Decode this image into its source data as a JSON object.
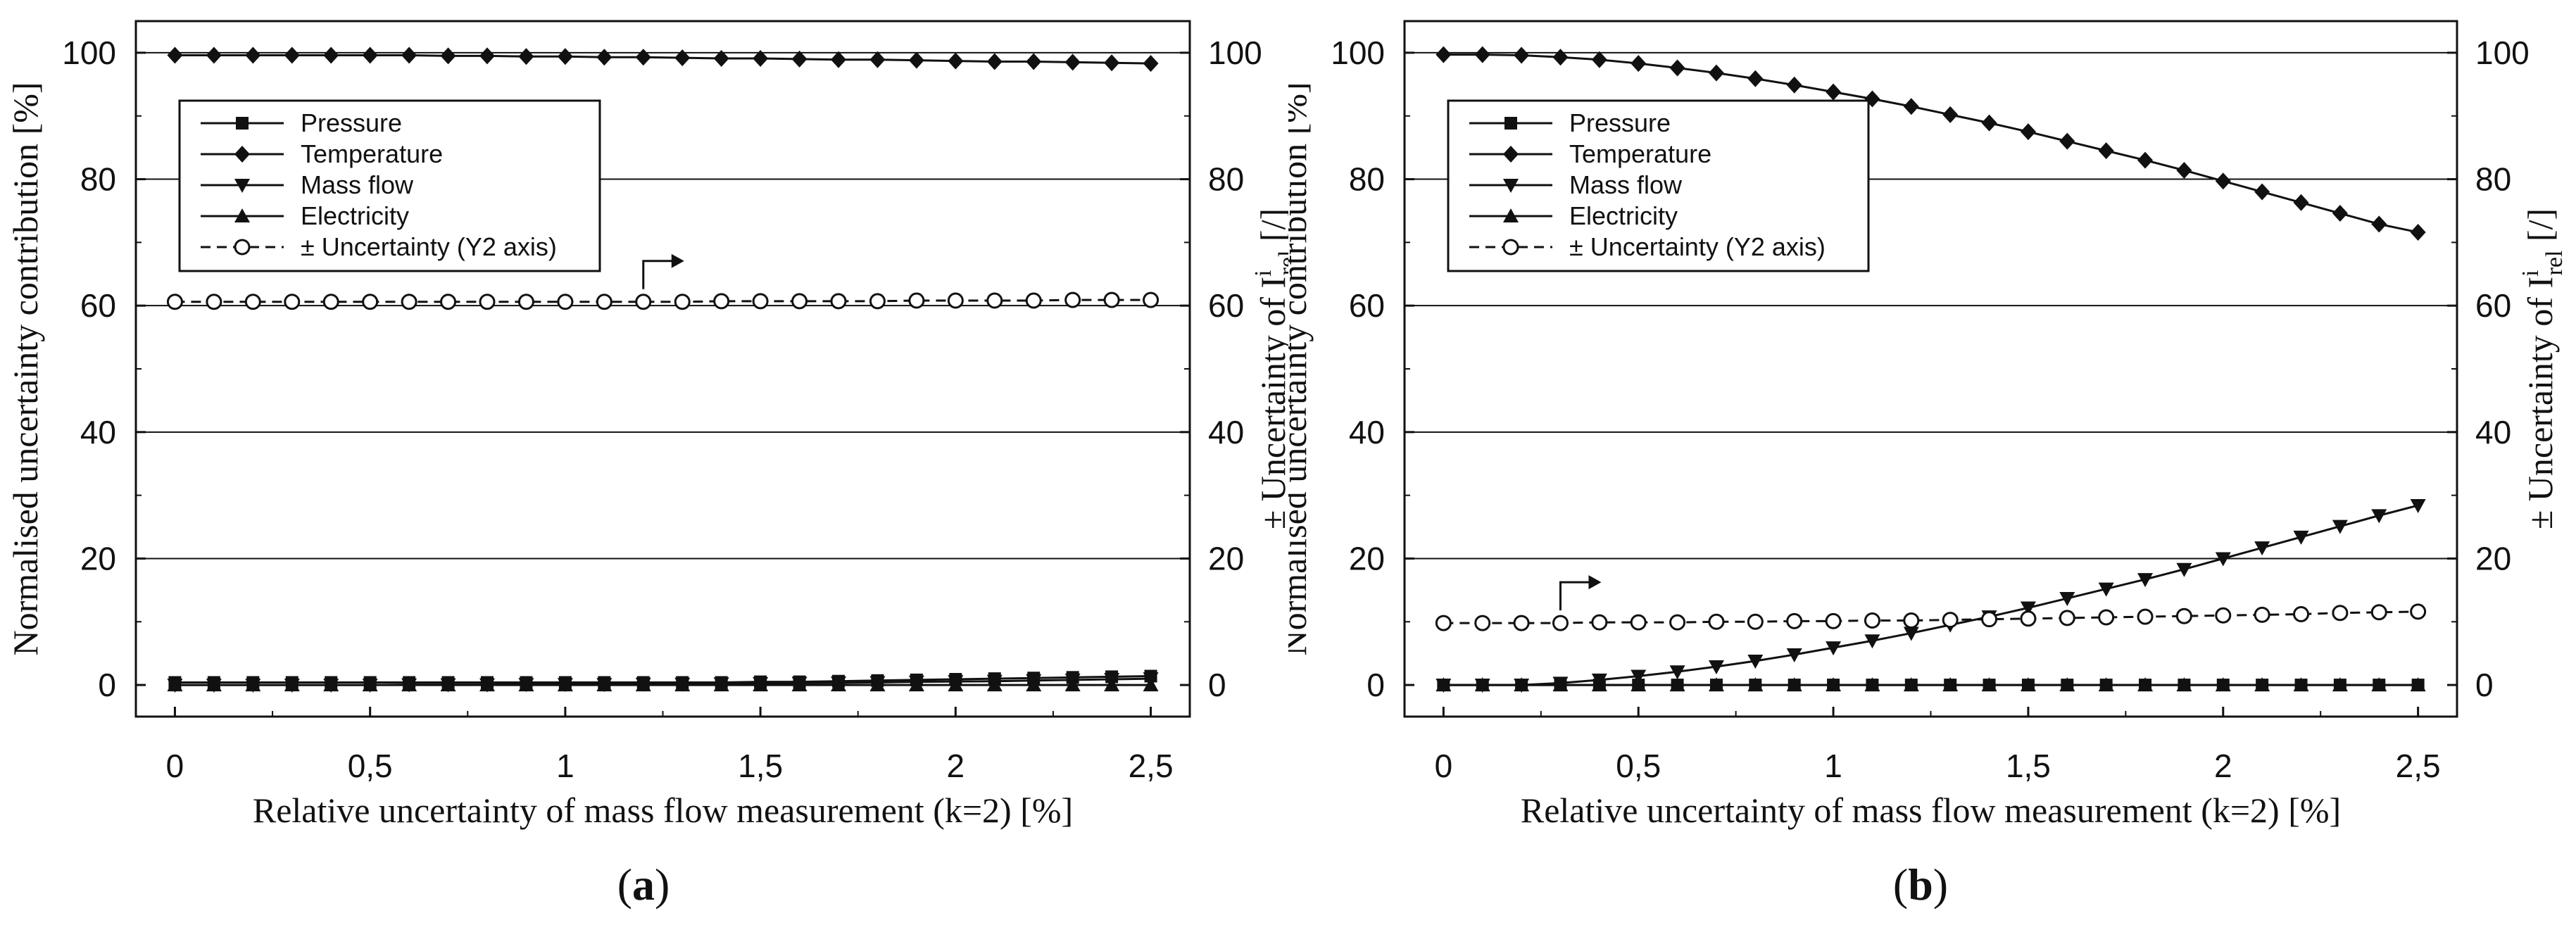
{
  "chart_data": [
    {
      "type": "line",
      "panel": "a",
      "xlabel": "Relative uncertainty of mass flow measurement (k=2) [%]",
      "ylabel": "Normalised uncertainty contribution [%]",
      "y2label_prefix": "± Uncertainty of I",
      "y2label_sup": "i",
      "y2label_sub": "rel",
      "y2label_suffix": " [/]",
      "xlim": [
        -0.1,
        2.6
      ],
      "ylim": [
        -5,
        105
      ],
      "y2lim": [
        -5,
        105
      ],
      "xticks": [
        "0",
        "0,5",
        "1",
        "1,5",
        "2",
        "2,5"
      ],
      "yticks": [
        "0",
        "20",
        "40",
        "60",
        "80",
        "100"
      ],
      "y2ticks": [
        "0",
        "20",
        "40",
        "60",
        "80",
        "100"
      ],
      "x": [
        0,
        0.1,
        0.2,
        0.3,
        0.4,
        0.5,
        0.6,
        0.7,
        0.8,
        0.9,
        1.0,
        1.1,
        1.2,
        1.3,
        1.4,
        1.5,
        1.6,
        1.7,
        1.8,
        1.9,
        2.0,
        2.1,
        2.2,
        2.3,
        2.4,
        2.5
      ],
      "series": [
        {
          "name": "Pressure",
          "marker": "square",
          "axis": "y1",
          "dashed": false,
          "values": [
            0.4,
            0.4,
            0.4,
            0.4,
            0.4,
            0.4,
            0.4,
            0.4,
            0.4,
            0.4,
            0.4,
            0.4,
            0.4,
            0.4,
            0.4,
            0.5,
            0.5,
            0.6,
            0.7,
            0.8,
            0.9,
            1.0,
            1.1,
            1.2,
            1.3,
            1.4
          ]
        },
        {
          "name": "Temperature",
          "marker": "diamond",
          "axis": "y1",
          "dashed": false,
          "values": [
            99.6,
            99.6,
            99.6,
            99.6,
            99.6,
            99.6,
            99.6,
            99.5,
            99.5,
            99.4,
            99.4,
            99.3,
            99.3,
            99.2,
            99.1,
            99.1,
            99.0,
            98.9,
            98.9,
            98.8,
            98.7,
            98.6,
            98.6,
            98.5,
            98.4,
            98.3
          ]
        },
        {
          "name": "Mass flow",
          "marker": "triangle-down",
          "axis": "y1",
          "dashed": false,
          "values": [
            0,
            0,
            0,
            0,
            0,
            0,
            0.05,
            0.05,
            0.05,
            0.1,
            0.1,
            0.1,
            0.15,
            0.15,
            0.2,
            0.25,
            0.3,
            0.35,
            0.4,
            0.5,
            0.55,
            0.6,
            0.7,
            0.8,
            0.9,
            1.0
          ]
        },
        {
          "name": "Electricity",
          "marker": "triangle-up",
          "axis": "y1",
          "dashed": false,
          "values": [
            0,
            0,
            0,
            0,
            0,
            0,
            0,
            0,
            0,
            0,
            0,
            0,
            0,
            0,
            0,
            0,
            0,
            0,
            0,
            0,
            0,
            0,
            0,
            0,
            0,
            0
          ]
        },
        {
          "name": "± Uncertainty (Y2 axis)",
          "marker": "circle-open",
          "axis": "y2",
          "dashed": true,
          "values": [
            60.6,
            60.6,
            60.6,
            60.6,
            60.6,
            60.6,
            60.6,
            60.6,
            60.6,
            60.6,
            60.6,
            60.6,
            60.6,
            60.6,
            60.7,
            60.7,
            60.7,
            60.7,
            60.7,
            60.8,
            60.8,
            60.8,
            60.8,
            60.9,
            60.9,
            60.9
          ]
        }
      ]
    },
    {
      "type": "line",
      "panel": "b",
      "xlabel": "Relative uncertainty of mass flow measurement (k=2) [%]",
      "ylabel": "Normalised uncertainty contribution [%]",
      "y2label_prefix": "± Uncertainty of I",
      "y2label_sup": "i",
      "y2label_sub": "rel",
      "y2label_suffix": " [/]",
      "xlim": [
        -0.1,
        2.6
      ],
      "ylim": [
        -5,
        105
      ],
      "y2lim": [
        -5,
        105
      ],
      "xticks": [
        "0",
        "0,5",
        "1",
        "1,5",
        "2",
        "2,5"
      ],
      "yticks": [
        "0",
        "20",
        "40",
        "60",
        "80",
        "100"
      ],
      "y2ticks": [
        "0",
        "20",
        "40",
        "60",
        "80",
        "100"
      ],
      "x": [
        0,
        0.1,
        0.2,
        0.3,
        0.4,
        0.5,
        0.6,
        0.7,
        0.8,
        0.9,
        1.0,
        1.1,
        1.2,
        1.3,
        1.4,
        1.5,
        1.6,
        1.7,
        1.8,
        1.9,
        2.0,
        2.1,
        2.2,
        2.3,
        2.4,
        2.5
      ],
      "series": [
        {
          "name": "Pressure",
          "marker": "square",
          "axis": "y1",
          "dashed": false,
          "values": [
            0,
            0,
            0,
            0,
            0,
            0,
            0,
            0,
            0,
            0,
            0,
            0,
            0,
            0,
            0,
            0,
            0,
            0,
            0,
            0,
            0,
            0,
            0,
            0,
            0,
            0
          ]
        },
        {
          "name": "Temperature",
          "marker": "diamond",
          "axis": "y1",
          "dashed": false,
          "values": [
            99.7,
            99.7,
            99.6,
            99.3,
            98.9,
            98.3,
            97.6,
            96.8,
            95.9,
            94.9,
            93.8,
            92.7,
            91.5,
            90.2,
            88.9,
            87.5,
            86.0,
            84.5,
            83.0,
            81.4,
            79.7,
            78.0,
            76.3,
            74.6,
            72.9,
            71.6
          ]
        },
        {
          "name": "Mass flow",
          "marker": "triangle-down",
          "axis": "y1",
          "dashed": false,
          "values": [
            0,
            0,
            0,
            0.3,
            0.8,
            1.4,
            2.1,
            2.9,
            3.8,
            4.8,
            5.9,
            7.0,
            8.2,
            9.5,
            10.8,
            12.2,
            13.7,
            15.2,
            16.7,
            18.3,
            20.0,
            21.7,
            23.4,
            25.1,
            26.8,
            28.4
          ]
        },
        {
          "name": "Electricity",
          "marker": "triangle-up",
          "axis": "y1",
          "dashed": false,
          "values": [
            0,
            0,
            0,
            0,
            0,
            0,
            0,
            0,
            0,
            0,
            0,
            0,
            0,
            0,
            0,
            0,
            0,
            0,
            0,
            0,
            0,
            0,
            0,
            0,
            0,
            0
          ]
        },
        {
          "name": "± Uncertainty (Y2 axis)",
          "marker": "circle-open",
          "axis": "y2",
          "dashed": true,
          "values": [
            9.8,
            9.8,
            9.8,
            9.8,
            9.9,
            9.9,
            9.9,
            10.0,
            10.0,
            10.1,
            10.1,
            10.2,
            10.2,
            10.3,
            10.4,
            10.5,
            10.6,
            10.7,
            10.8,
            10.9,
            11.0,
            11.1,
            11.2,
            11.4,
            11.5,
            11.6
          ]
        }
      ]
    }
  ],
  "labels": {
    "panel_a": "(a)",
    "panel_b": "(b)",
    "panel_a_letter": "a",
    "panel_b_letter": "b"
  }
}
